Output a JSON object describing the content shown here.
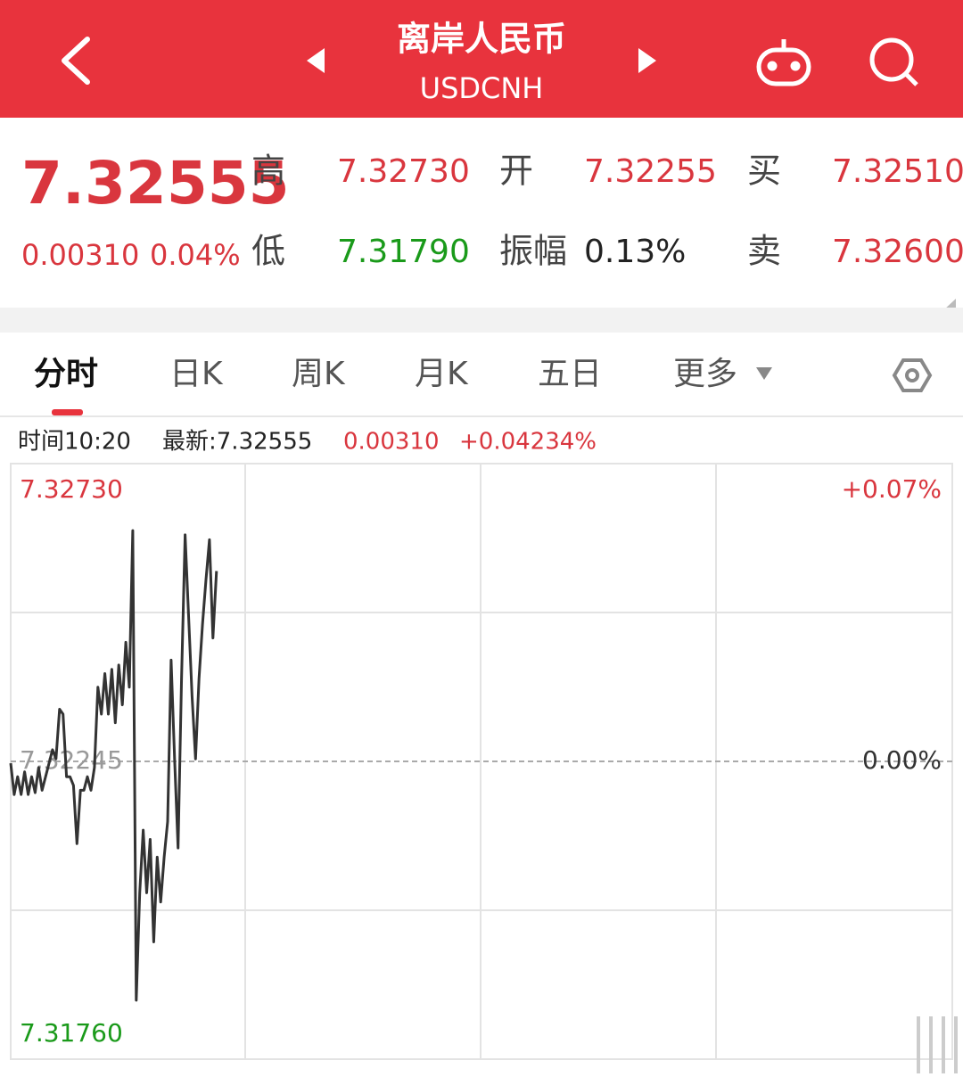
{
  "header": {
    "title": "离岸人民币",
    "subtitle": "USDCNH"
  },
  "quote": {
    "price": "7.32555",
    "change": "0.00310",
    "change_pct": "0.04%",
    "stats": [
      {
        "label": "高",
        "value": "7.32730"
      },
      {
        "label": "开",
        "value": "7.32255"
      },
      {
        "label": "买",
        "value": "7.32510"
      },
      {
        "label": "低",
        "value": "7.31790"
      },
      {
        "label": "振幅",
        "value": "0.13%"
      },
      {
        "label": "卖",
        "value": "7.32600"
      }
    ]
  },
  "tabs": [
    "分时",
    "日K",
    "周K",
    "月K",
    "五日",
    "更多"
  ],
  "info": {
    "time": "时间10:20",
    "latest": "最新:7.32555",
    "change": "0.00310",
    "change_pct": "+0.04234%"
  },
  "chart_data": {
    "type": "line",
    "color": "#333333",
    "xlim": [
      0,
      270
    ],
    "ylim": [
      7.3176,
      7.3273
    ],
    "yticks": [
      {
        "value": 7.3273,
        "label": "7.32730"
      },
      7.32245,
      {
        "value": 7.3176,
        "label": "7.31760"
      }
    ],
    "y2lim": [
      -0.07,
      0.07
    ],
    "y2ticks": [
      {
        "value": 0.07,
        "label": "+0.07%"
      },
      {
        "value": 0,
        "label": "0.00%"
      }
    ],
    "values": [
      7.32242,
      7.32191,
      7.3222,
      7.32191,
      7.32228,
      7.32191,
      7.3222,
      7.32194,
      7.32235,
      7.32198,
      7.3222,
      7.32242,
      7.32264,
      7.32249,
      7.3233,
      7.32322,
      7.3222,
      7.3222,
      7.32206,
      7.32111,
      7.32198,
      7.32198,
      7.3222,
      7.32198,
      7.32235,
      7.32366,
      7.32322,
      7.32388,
      7.32322,
      7.32395,
      7.32308,
      7.32402,
      7.32337,
      7.32439,
      7.32366,
      7.32621,
      7.31856,
      7.32031,
      7.32133,
      7.32031,
      7.32118,
      7.31951,
      7.32089,
      7.32016,
      7.32089,
      7.32147,
      7.3241,
      7.32249,
      7.32104,
      7.3238,
      7.32614,
      7.32482,
      7.32351,
      7.32249,
      7.3238,
      7.32468,
      7.32541,
      7.32606,
      7.32446,
      7.32555
    ]
  }
}
